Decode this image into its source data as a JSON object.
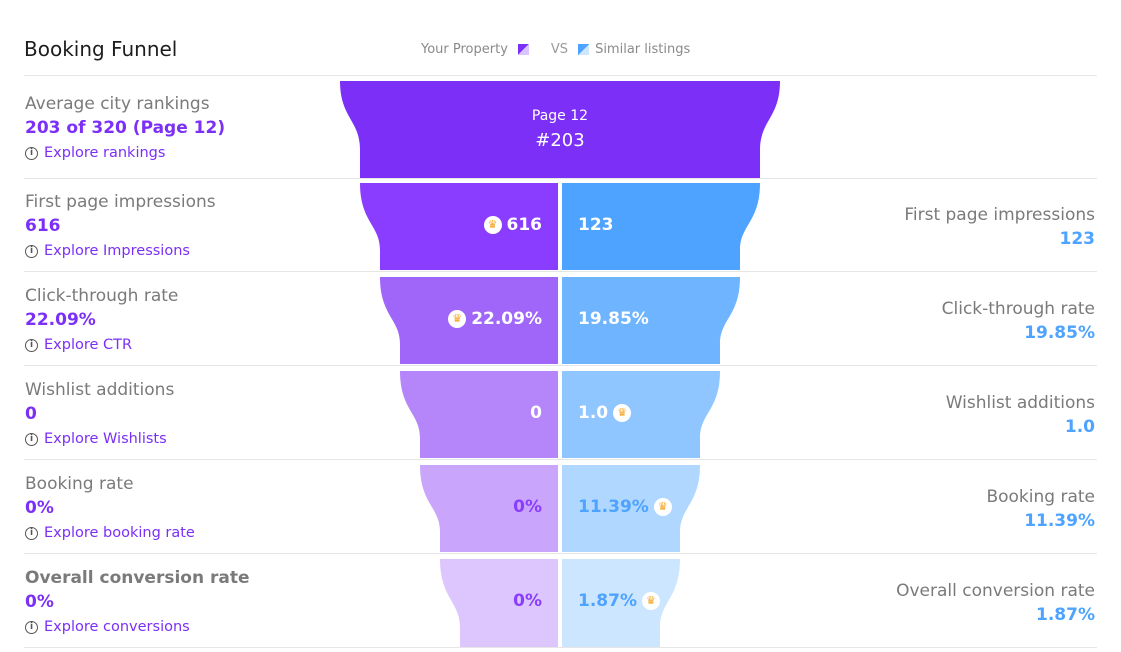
{
  "header": {
    "title": "Booking Funnel",
    "legend_your": "Your Property",
    "legend_vs": "VS",
    "legend_similar": "Similar listings"
  },
  "colors": {
    "purple_accent": "#7b2ff7",
    "blue_accent": "#4da3ff",
    "crown": "#f4a21f"
  },
  "top": {
    "label": "Average city rankings",
    "value": "203 of 320 (Page 12)",
    "explore": "Explore rankings",
    "funnel_page": "Page 12",
    "funnel_rank": "#203"
  },
  "rows": [
    {
      "left_label": "First page impressions",
      "left_value": "616",
      "explore": "Explore Impressions",
      "right_label": "First page impressions",
      "right_value": "123",
      "funnel_left": "616",
      "funnel_right": "123"
    },
    {
      "left_label": "Click-through rate",
      "left_value": "22.09%",
      "explore": "Explore CTR",
      "right_label": "Click-through rate",
      "right_value": "19.85%",
      "funnel_left": "22.09%",
      "funnel_right": "19.85%"
    },
    {
      "left_label": "Wishlist additions",
      "left_value": "0",
      "explore": "Explore Wishlists",
      "right_label": "Wishlist additions",
      "right_value": "1.0",
      "funnel_left": "0",
      "funnel_right": "1.0"
    },
    {
      "left_label": "Booking rate",
      "left_value": "0%",
      "explore": "Explore booking rate",
      "right_label": "Booking rate",
      "right_value": "11.39%",
      "funnel_left": "0%",
      "funnel_right": "11.39%"
    },
    {
      "left_label": "Overall conversion rate",
      "left_value": "0%",
      "explore": "Explore conversions",
      "right_label": "Overall conversion rate",
      "right_value": "1.87%",
      "funnel_left": "0%",
      "funnel_right": "1.87%"
    }
  ]
}
